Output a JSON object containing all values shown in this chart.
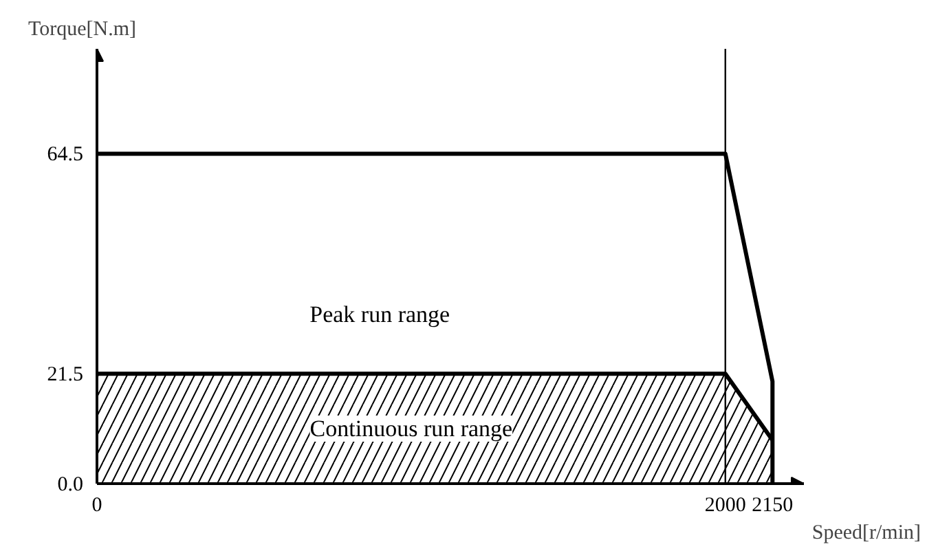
{
  "chart_data": {
    "type": "line",
    "xlabel": "Speed[r/min]",
    "ylabel": "Torque[N.m]",
    "xlim": [
      0,
      2250
    ],
    "ylim": [
      0,
      85
    ],
    "xticks": [
      0,
      2000,
      2150
    ],
    "yticks": [
      {
        "value": 0,
        "label": "0.0"
      },
      21.5,
      64.5
    ],
    "series": [
      {
        "type": "area",
        "name": "Continuous run range",
        "color": "#000000",
        "x": [
          0,
          2000,
          2150
        ],
        "values": [
          21.5,
          21.5,
          8.5
        ]
      },
      {
        "color": "#000000",
        "x": [
          0,
          2000,
          2150,
          2150
        ],
        "values": [
          64.5,
          64.5,
          20,
          0
        ]
      }
    ],
    "ref_lines": [
      {
        "axis": "x",
        "value": 2000,
        "color": "#000000"
      }
    ],
    "annotations": [
      "Peak run range"
    ]
  }
}
